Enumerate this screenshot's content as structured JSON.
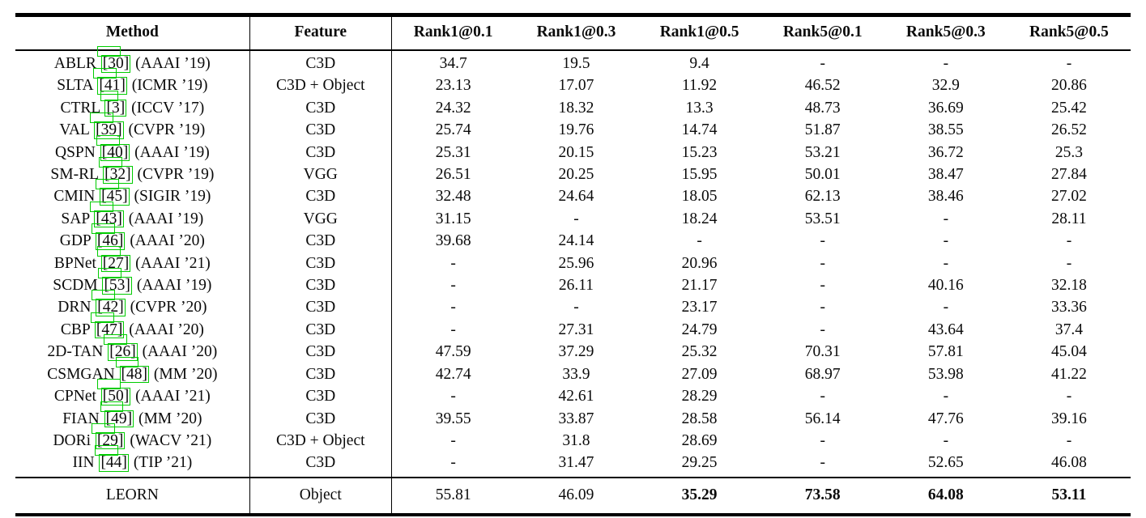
{
  "colors": {
    "link_box": "#00cc00",
    "rule": "#000000",
    "text": "#0b0b0b",
    "background": "#ffffff"
  },
  "table": {
    "columns": [
      "Method",
      "Feature",
      "Rank1@0.1",
      "Rank1@0.3",
      "Rank1@0.5",
      "Rank5@0.1",
      "Rank5@0.3",
      "Rank5@0.5"
    ],
    "rows": [
      {
        "name": "ABLR",
        "ref": "30",
        "venue": "AAAI ’19",
        "feature": "C3D",
        "values": [
          "34.7",
          "19.5",
          "9.4",
          "-",
          "-",
          "-"
        ]
      },
      {
        "name": "SLTA",
        "ref": "41",
        "venue": "ICMR ’19",
        "feature": "C3D + Object",
        "values": [
          "23.13",
          "17.07",
          "11.92",
          "46.52",
          "32.9",
          "20.86"
        ]
      },
      {
        "name": "CTRL",
        "ref": "3",
        "venue": "ICCV ’17",
        "feature": "C3D",
        "values": [
          "24.32",
          "18.32",
          "13.3",
          "48.73",
          "36.69",
          "25.42"
        ]
      },
      {
        "name": "VAL",
        "ref": "39",
        "venue": "CVPR ’19",
        "feature": "C3D",
        "values": [
          "25.74",
          "19.76",
          "14.74",
          "51.87",
          "38.55",
          "26.52"
        ]
      },
      {
        "name": "QSPN",
        "ref": "40",
        "venue": "AAAI ’19",
        "feature": "C3D",
        "values": [
          "25.31",
          "20.15",
          "15.23",
          "53.21",
          "36.72",
          "25.3"
        ]
      },
      {
        "name": "SM-RL",
        "ref": "32",
        "venue": "CVPR ’19",
        "feature": "VGG",
        "values": [
          "26.51",
          "20.25",
          "15.95",
          "50.01",
          "38.47",
          "27.84"
        ]
      },
      {
        "name": "CMIN",
        "ref": "45",
        "venue": "SIGIR ’19",
        "feature": "C3D",
        "values": [
          "32.48",
          "24.64",
          "18.05",
          "62.13",
          "38.46",
          "27.02"
        ]
      },
      {
        "name": "SAP",
        "ref": "43",
        "venue": "AAAI ’19",
        "feature": "VGG",
        "values": [
          "31.15",
          "-",
          "18.24",
          "53.51",
          "-",
          "28.11"
        ]
      },
      {
        "name": "GDP",
        "ref": "46",
        "venue": "AAAI ’20",
        "feature": "C3D",
        "values": [
          "39.68",
          "24.14",
          "-",
          "-",
          "-",
          "-"
        ]
      },
      {
        "name": "BPNet",
        "ref": "27",
        "venue": "AAAI ’21",
        "feature": "C3D",
        "values": [
          "-",
          "25.96",
          "20.96",
          "-",
          "-",
          "-"
        ]
      },
      {
        "name": "SCDM",
        "ref": "53",
        "venue": "AAAI ’19",
        "feature": "C3D",
        "values": [
          "-",
          "26.11",
          "21.17",
          "-",
          "40.16",
          "32.18"
        ]
      },
      {
        "name": "DRN",
        "ref": "42",
        "venue": "CVPR ’20",
        "feature": "C3D",
        "values": [
          "-",
          "-",
          "23.17",
          "-",
          "-",
          "33.36"
        ]
      },
      {
        "name": "CBP",
        "ref": "47",
        "venue": "AAAI ’20",
        "feature": "C3D",
        "values": [
          "-",
          "27.31",
          "24.79",
          "-",
          "43.64",
          "37.4"
        ]
      },
      {
        "name": "2D-TAN",
        "ref": "26",
        "venue": "AAAI ’20",
        "feature": "C3D",
        "values": [
          "47.59",
          "37.29",
          "25.32",
          "70.31",
          "57.81",
          "45.04"
        ]
      },
      {
        "name": "CSMGAN",
        "ref": "48",
        "venue": "MM ’20",
        "feature": "C3D",
        "values": [
          "42.74",
          "33.9",
          "27.09",
          "68.97",
          "53.98",
          "41.22"
        ]
      },
      {
        "name": "CPNet",
        "ref": "50",
        "venue": "AAAI ’21",
        "feature": "C3D",
        "values": [
          "-",
          "42.61",
          "28.29",
          "-",
          "-",
          "-"
        ]
      },
      {
        "name": "FIAN",
        "ref": "49",
        "venue": "MM ’20",
        "feature": "C3D",
        "values": [
          "39.55",
          "33.87",
          "28.58",
          "56.14",
          "47.76",
          "39.16"
        ]
      },
      {
        "name": "DORi",
        "ref": "29",
        "venue": "WACV ’21",
        "feature": "C3D + Object",
        "values": [
          "-",
          "31.8",
          "28.69",
          "-",
          "-",
          "-"
        ]
      },
      {
        "name": "IIN",
        "ref": "44",
        "venue": "TIP ’21",
        "feature": "C3D",
        "values": [
          "-",
          "31.47",
          "29.25",
          "-",
          "52.65",
          "46.08"
        ]
      }
    ],
    "final_row": {
      "method": "LEORN",
      "feature": "Object",
      "values": [
        "55.81",
        "46.09",
        "35.29",
        "73.58",
        "64.08",
        "53.11"
      ],
      "values_bold": [
        false,
        false,
        true,
        true,
        true,
        true
      ]
    }
  }
}
